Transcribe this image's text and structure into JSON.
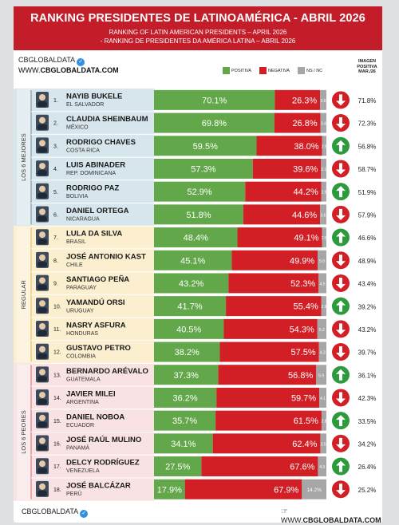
{
  "header": {
    "title": "RANKING PRESIDENTES DE LATINOAMÉRICA - ABRIL 2026",
    "subtitle_en": "RANKING OF LATIN AMERICAN PRESIDENTS – APRIL 2026",
    "subtitle_pt": "- RANKING DE PRESIDENTES DA AMÉRICA LATINA – ABRIL 2026"
  },
  "brand": {
    "name": "CBGLOBALDATA",
    "site_prefix": "WWW.",
    "site_domain": "CBGLOBALDATA.COM"
  },
  "legend": {
    "positive": "POSITIVA",
    "negative": "NEGATIVA",
    "nsnc": "NS / NC"
  },
  "image_col_header": [
    "IMAGEN",
    "POSITIVA",
    "MAR./26"
  ],
  "colors": {
    "header_red": "#c41d2a",
    "positive": "#62a749",
    "negative": "#d21f26",
    "nsnc": "#a6a6a6",
    "group_top": "#d7e6ec",
    "group_mid": "#fbefcf",
    "group_low": "#f9e2e3",
    "arrow_up": "#2c9a3d",
    "arrow_down": "#d21f26"
  },
  "groups": [
    {
      "label": "LOS 6 MEJORES",
      "start": 0,
      "end": 5
    },
    {
      "label": "REGULAR",
      "start": 6,
      "end": 11
    },
    {
      "label": "LOS 6 PEORES",
      "start": 12,
      "end": 17
    }
  ],
  "chart_data": {
    "type": "bar",
    "stacked": true,
    "orientation": "horizontal",
    "title": "RANKING PRESIDENTES DE LATINOAMÉRICA - ABRIL 2026",
    "categories": [
      "NAYIB BUKELE",
      "CLAUDIA SHEINBAUM",
      "RODRIGO CHAVES",
      "LUIS ABINADER",
      "RODRIGO PAZ",
      "DANIEL ORTEGA",
      "LULA DA SILVA",
      "JOSÉ ANTONIO KAST",
      "SANTIAGO PEÑA",
      "YAMANDÚ ORSI",
      "NASRY ASFURA",
      "GUSTAVO PETRO",
      "BERNARDO ARÉVALO",
      "JAVIER MILEI",
      "DANIEL NOBOA",
      "JOSÉ RAÚL MULINO",
      "DELCY RODRÍGUEZ",
      "JOSÉ BALCÁZAR"
    ],
    "rows": [
      {
        "rank": "1.",
        "name": "NAYIB BUKELE",
        "country": "EL SALVADOR",
        "pos": "70.1%",
        "neg": "26.3%",
        "ns": "3.6",
        "trend": "down",
        "prev": "71.8%"
      },
      {
        "rank": "2.",
        "name": "CLAUDIA SHEINBAUM",
        "country": "MÉXICO",
        "pos": "69.8%",
        "neg": "26.8%",
        "ns": "3.4",
        "trend": "down",
        "prev": "72.3%"
      },
      {
        "rank": "3.",
        "name": "RODRIGO CHAVES",
        "country": "COSTA RICA",
        "pos": "59.5%",
        "neg": "38.0%",
        "ns": "2.5",
        "trend": "up",
        "prev": "56.8%"
      },
      {
        "rank": "4.",
        "name": "LUIS ABINADER",
        "country": "REP. DOMINICANA",
        "pos": "57.3%",
        "neg": "39.6%",
        "ns": "3.1",
        "trend": "down",
        "prev": "58.7%"
      },
      {
        "rank": "5.",
        "name": "RODRIGO PAZ",
        "country": "BOLIVIA",
        "pos": "52.9%",
        "neg": "44.2%",
        "ns": "2.9",
        "trend": "up",
        "prev": "51.9%"
      },
      {
        "rank": "6.",
        "name": "DANIEL ORTEGA",
        "country": "NICARAGUA",
        "pos": "51.8%",
        "neg": "44.6%",
        "ns": "3.6",
        "trend": "down",
        "prev": "57.9%"
      },
      {
        "rank": "7.",
        "name": "LULA DA SILVA",
        "country": "BRASIL",
        "pos": "48.4%",
        "neg": "49.1%",
        "ns": "2.5",
        "trend": "up",
        "prev": "46.6%"
      },
      {
        "rank": "8.",
        "name": "JOSÉ ANTONIO KAST",
        "country": "CHILE",
        "pos": "45.1%",
        "neg": "49.9%",
        "ns": "5.0",
        "trend": "down",
        "prev": "48.9%"
      },
      {
        "rank": "9.",
        "name": "SANTIAGO PEÑA",
        "country": "PARAGUAY",
        "pos": "43.2%",
        "neg": "52.3%",
        "ns": "4.5",
        "trend": "down",
        "prev": "43.4%"
      },
      {
        "rank": "10.",
        "name": "YAMANDÚ ORSI",
        "country": "URUGUAY",
        "pos": "41.7%",
        "neg": "55.4%",
        "ns": "2.9",
        "trend": "up",
        "prev": "39.2%"
      },
      {
        "rank": "11.",
        "name": "NASRY ASFURA",
        "country": "HONDURAS",
        "pos": "40.5%",
        "neg": "54.3%",
        "ns": "5.2",
        "trend": "down",
        "prev": "43.2%"
      },
      {
        "rank": "12.",
        "name": "GUSTAVO PETRO",
        "country": "COLOMBIA",
        "pos": "38.2%",
        "neg": "57.5%",
        "ns": "4.3",
        "trend": "down",
        "prev": "39.7%"
      },
      {
        "rank": "13.",
        "name": "BERNARDO ARÉVALO",
        "country": "GUATEMALA",
        "pos": "37.3%",
        "neg": "56.8%",
        "ns": "5.9",
        "trend": "up",
        "prev": "36.1%"
      },
      {
        "rank": "14.",
        "name": "JAVIER MILEI",
        "country": "ARGENTINA",
        "pos": "36.2%",
        "neg": "59.7%",
        "ns": "4.1",
        "trend": "down",
        "prev": "42.3%"
      },
      {
        "rank": "15.",
        "name": "DANIEL NOBOA",
        "country": "ECUADOR",
        "pos": "35.7%",
        "neg": "61.5%",
        "ns": "2.8",
        "trend": "up",
        "prev": "33.5%"
      },
      {
        "rank": "16.",
        "name": "JOSÉ RAÚL MULINO",
        "country": "PANAMÁ",
        "pos": "34.1%",
        "neg": "62.4%",
        "ns": "3.5",
        "trend": "down",
        "prev": "34.2%"
      },
      {
        "rank": "17.",
        "name": "DELCY RODRÍGUEZ",
        "country": "VENEZUELA",
        "pos": "27.5%",
        "neg": "67.6%",
        "ns": "4.9",
        "trend": "up",
        "prev": "26.4%"
      },
      {
        "rank": "18.",
        "name": "JOSÉ BALCÁZAR",
        "country": "PERÚ",
        "pos": "17.9%",
        "neg": "67.9%",
        "ns": "14.2%",
        "trend": "down",
        "prev": "25.2%"
      }
    ],
    "xlim": [
      0,
      100
    ],
    "legend_position": "top"
  }
}
